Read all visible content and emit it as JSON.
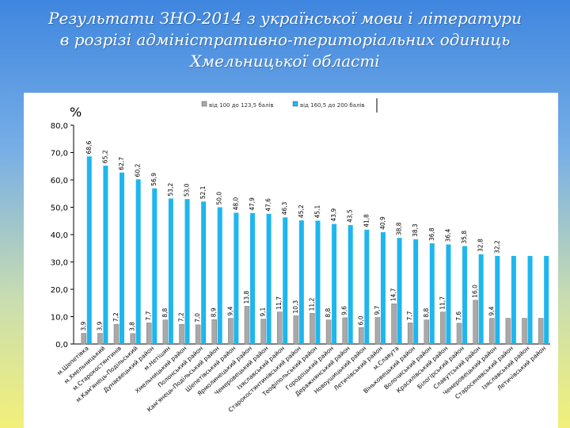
{
  "slide": {
    "title_lines": [
      "Результати ЗНО-2014 з української мови і літератури",
      "в розрізі адміністративно-територіальних одиниць",
      "Хмельницької області"
    ]
  },
  "chart_data": {
    "type": "bar",
    "ylabel": "%",
    "ylim": [
      0,
      80
    ],
    "yticks": [
      "0,0",
      "10,0",
      "20,0",
      "30,0",
      "40,0",
      "50,0",
      "60,0",
      "70,0",
      "80,0"
    ],
    "grid": false,
    "legend_position": "top",
    "categories": [
      "м.Шепетівка",
      "м.Хмельницький",
      "м.Старокостянтинів",
      "м.Кам'янець-Подільський",
      "Дунаєвецький район",
      "м.Нетішин",
      "Хмельницький район",
      "Полонський район",
      "Кам'янець-Подільський район",
      "Шепетівський район",
      "Ярмолинецький район",
      "Чемеровецький район",
      "Ізяславський район",
      "Старокостянтинівський район",
      "Теофіпольський район",
      "Городоцький район",
      "Деражнянський район",
      "Новоушицький район",
      "Летичівський район",
      "м.Славута",
      "Віньковецький район",
      "Волочиський район",
      "Красилівський район",
      "Білогірський район",
      "Славутський район",
      "Чемеровецький район",
      "Старосинявський район",
      "Ізяславський район",
      "Летичівський район"
    ],
    "series": [
      {
        "name": "від 100 до 123,5 балів",
        "color": "#a9a9a9",
        "values": [
          3.9,
          3.9,
          7.2,
          3.8,
          7.7,
          8.8,
          7.2,
          7.0,
          8.9,
          9.4,
          13.8,
          9.1,
          11.7,
          10.3,
          11.2,
          8.8,
          9.6,
          6.0,
          9.7,
          14.7,
          7.7,
          8.8,
          11.7,
          7.6,
          16.0,
          9.4,
          9.4,
          9.4,
          9.4
        ],
        "labels": [
          "3,9",
          "3,9",
          "7,2",
          "3,8",
          "7,7",
          "8,8",
          "7,2",
          "7,0",
          "8,9",
          "9,4",
          "13,8",
          "9,1",
          "11,7",
          "10,3",
          "11,2",
          "8,8",
          "9,6",
          "6,0",
          "9,7",
          "14,7",
          "7,7",
          "8,8",
          "11,7",
          "7,6",
          "16,0",
          "9,4",
          "",
          "",
          ""
        ]
      },
      {
        "name": "від 160,5 до 200 балів",
        "color": "#1fb6ee",
        "values": [
          68.6,
          65.2,
          62.7,
          60.2,
          56.9,
          53.2,
          53.0,
          52.1,
          50.0,
          48.0,
          47.9,
          47.6,
          46.3,
          45.2,
          45.1,
          43.9,
          43.5,
          41.8,
          40.9,
          38.8,
          38.3,
          36.8,
          36.4,
          35.8,
          32.8,
          32.2,
          32.2,
          32.2,
          32.2
        ],
        "labels": [
          "68,6",
          "65,2",
          "62,7",
          "60,2",
          "56,9",
          "53,2",
          "53,0",
          "52,1",
          "50,0",
          "48,0",
          "47,9",
          "47,6",
          "46,3",
          "45,2",
          "45,1",
          "43,9",
          "43,5",
          "41,8",
          "40,9",
          "38,8",
          "38,3",
          "36,8",
          "36,4",
          "35,8",
          "32,8",
          "32,2",
          "",
          "",
          ""
        ]
      }
    ]
  }
}
